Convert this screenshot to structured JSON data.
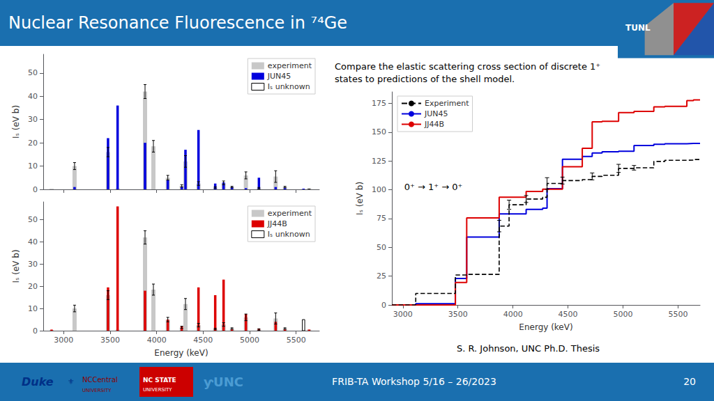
{
  "chart_data": [
    {
      "type": "bar",
      "title": "Nuclear Resonance Fluorescence in ⁷⁴Ge",
      "annotations": [
        "TUNL",
        "Duke",
        "⚜",
        "NCCentral",
        "UNIVERSITY",
        "NC STATE",
        "UNIVERSITY",
        "ƴUNC",
        "FRIB-TA Workshop 5/16 – 26/2023",
        "20"
      ],
      "x": [
        2870,
        3117,
        3477,
        3580,
        3875,
        3965,
        4120,
        4270,
        4310,
        4450,
        4630,
        4720,
        4810,
        4960,
        5100,
        5280,
        5380,
        5580,
        5640
      ],
      "series": [
        {
          "name": "experiment",
          "color": "#c8c8c8",
          "values": [
            0.3,
            10.0,
            16.0,
            0.5,
            42.0,
            18.5,
            5.0,
            1.5,
            12.0,
            2.5,
            0.8,
            2.8,
            1.0,
            6.0,
            0.5,
            5.5,
            1.0,
            0.2,
            0.5
          ],
          "errors": [
            0.0,
            1.5,
            2.0,
            0.0,
            3.0,
            2.5,
            1.0,
            0.5,
            2.5,
            0.8,
            0.3,
            0.8,
            0.3,
            1.5,
            0.3,
            2.5,
            0.3,
            0.0,
            0.0
          ]
        },
        {
          "name": "JUN45",
          "color": "#0000dd",
          "values": [
            0.0,
            1.0,
            22.0,
            36.0,
            20.0,
            0.0,
            4.0,
            1.0,
            17.0,
            25.5,
            2.5,
            3.0,
            1.0,
            0.5,
            5.0,
            1.0,
            0.5,
            0.3,
            null
          ]
        },
        {
          "name": "Iₛ unknown",
          "color": "#ffffff",
          "values": [
            null,
            null,
            null,
            null,
            null,
            null,
            null,
            null,
            null,
            null,
            null,
            null,
            null,
            null,
            null,
            null,
            null,
            null,
            0.0
          ]
        }
      ],
      "xlim": [
        2780,
        5750
      ],
      "xticks": [
        3000,
        3500,
        4000,
        4500,
        5000,
        5500
      ],
      "ylim": [
        0,
        58
      ],
      "yticks": [
        0,
        10,
        20,
        30,
        40,
        50
      ],
      "ylabel": "Iₛ (eV b)",
      "grid": false,
      "legend": "upper right",
      "tick_labels": "y"
    },
    {
      "type": "bar",
      "x": [
        2870,
        3117,
        3477,
        3580,
        3875,
        3965,
        4120,
        4270,
        4310,
        4450,
        4630,
        4720,
        4810,
        4960,
        5100,
        5280,
        5380,
        5580,
        5640
      ],
      "series": [
        {
          "name": "experiment",
          "color": "#c8c8c8",
          "values": [
            0.3,
            10.0,
            16.0,
            0.5,
            42.0,
            18.5,
            5.0,
            1.5,
            12.0,
            2.5,
            0.8,
            2.8,
            1.0,
            6.0,
            0.5,
            5.5,
            1.0,
            0.2,
            0.5
          ],
          "errors": [
            0.0,
            1.5,
            2.0,
            0.0,
            3.0,
            2.5,
            1.0,
            0.5,
            2.5,
            0.8,
            0.3,
            0.8,
            0.3,
            1.5,
            0.3,
            2.5,
            0.3,
            0.0,
            0.0
          ]
        },
        {
          "name": "JJ44B",
          "color": "#dd0000",
          "values": [
            0.5,
            0.0,
            19.5,
            56.0,
            18.0,
            0.0,
            5.0,
            2.0,
            0.0,
            19.5,
            16.0,
            23.0,
            0.5,
            7.5,
            1.0,
            4.0,
            0.5,
            null,
            0.5
          ]
        },
        {
          "name": "Iₛ unknown",
          "color": "#ffffff",
          "values": [
            null,
            null,
            null,
            null,
            null,
            null,
            null,
            null,
            null,
            null,
            null,
            null,
            null,
            null,
            null,
            null,
            null,
            5.0,
            null
          ]
        }
      ],
      "xlim": [
        2780,
        5750
      ],
      "xticks": [
        3000,
        3500,
        4000,
        4500,
        5000,
        5500
      ],
      "ylim": [
        0,
        58
      ],
      "yticks": [
        0,
        10,
        20,
        30,
        40,
        50
      ],
      "xlabel": "Energy (keV)",
      "ylabel": "Iₛ (eV b)",
      "grid": false,
      "legend": "upper right"
    },
    {
      "type": "step",
      "annotations": [
        "0⁺ → 1⁺ → 0⁺",
        "Compare the elastic scattering cross section of discrete 1⁺",
        "states to predictions of the shell model.",
        "S. R. Johnson, UNC Ph.D. Thesis"
      ],
      "x": [
        2900,
        3117,
        3477,
        3580,
        3875,
        3965,
        4120,
        4270,
        4310,
        4450,
        4630,
        4720,
        4810,
        4960,
        5100,
        5280,
        5380,
        5580,
        5640,
        5700
      ],
      "series": [
        {
          "name": "Experiment",
          "color": "#000000",
          "line_style": "dashed",
          "values": [
            0,
            10,
            26,
            26.5,
            68.5,
            87,
            92,
            93.5,
            105.5,
            108,
            108.8,
            111.6,
            112.6,
            118.6,
            119.1,
            124.6,
            125.6,
            125.8,
            126.3,
            126.3
          ],
          "errors": [
            null,
            null,
            null,
            null,
            5.0,
            4.0,
            3.0,
            null,
            5.0,
            3.0,
            null,
            3.0,
            null,
            3.5,
            2.0,
            null,
            null,
            null,
            null,
            null
          ]
        },
        {
          "name": "JUN45",
          "color": "#0000dd",
          "line_style": "solid",
          "values": [
            0,
            1,
            23,
            59,
            79,
            79,
            83,
            84,
            101,
            126.5,
            129,
            132,
            133,
            133.5,
            138.5,
            139.5,
            140,
            140.3,
            140.3,
            140.3
          ]
        },
        {
          "name": "JJ44B",
          "color": "#dd0000",
          "line_style": "solid",
          "values": [
            0,
            0,
            19.5,
            75.5,
            93.5,
            93.5,
            98.5,
            100.5,
            100.5,
            120,
            136,
            159,
            159.5,
            167,
            168,
            172,
            172.5,
            177.5,
            178,
            178
          ]
        }
      ],
      "xlim": [
        2900,
        5700
      ],
      "xticks": [
        3000,
        3500,
        4000,
        4500,
        5000,
        5500
      ],
      "ylim": [
        0,
        185
      ],
      "yticks": [
        0,
        25,
        50,
        75,
        100,
        125,
        150,
        175
      ],
      "xlabel": "Energy (keV)",
      "ylabel": "Iₛ (eV b)",
      "grid": false,
      "legend": "upper left"
    }
  ]
}
